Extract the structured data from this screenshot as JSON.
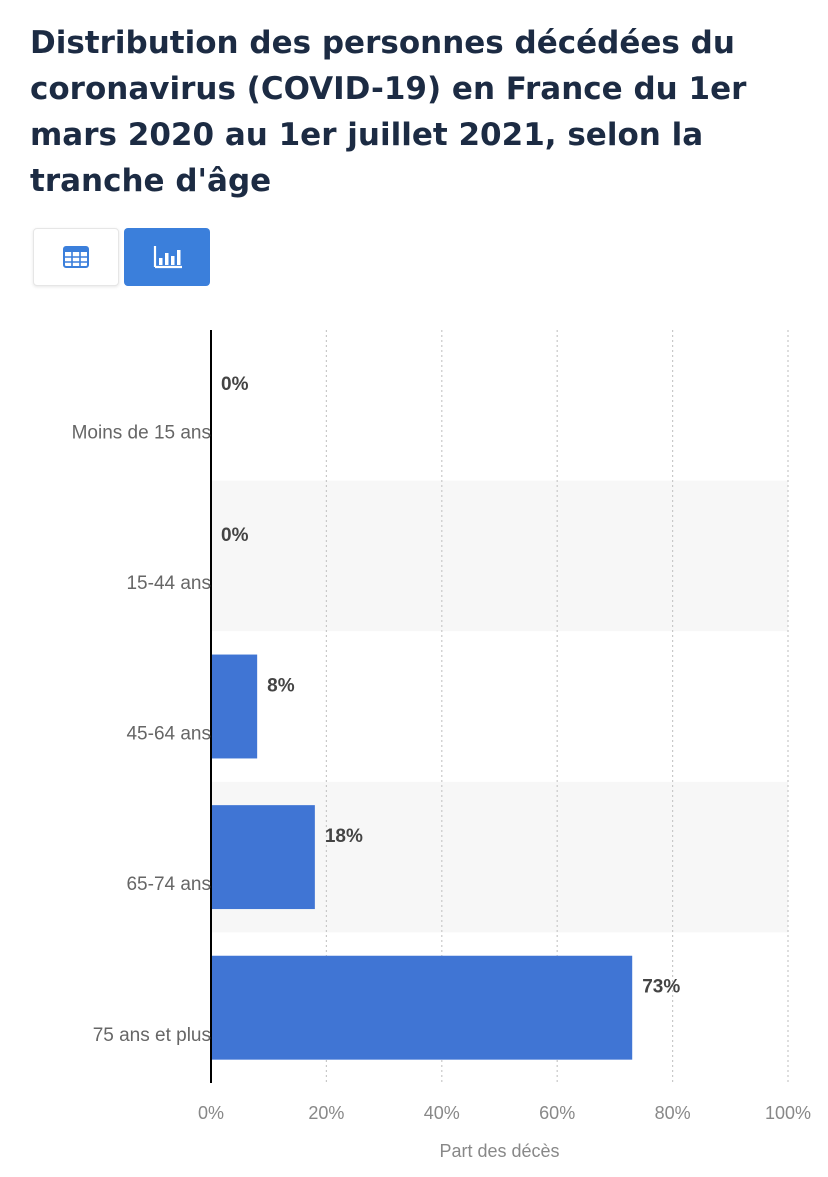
{
  "header": {
    "title": "Distribution des personnes décédées du coronavirus (COVID-19) en France du 1er mars 2020 au 1er juillet 2021, selon la tranche d'âge"
  },
  "view_toggle": {
    "table_icon": "table-icon",
    "chart_icon": "bar-chart-icon",
    "active": "chart"
  },
  "colors": {
    "bar": "#4075d4",
    "active_button": "#3b7fdb",
    "title": "#1c2b43",
    "alt_row": "#f7f7f7"
  },
  "chart_data": {
    "type": "bar",
    "orientation": "horizontal",
    "categories": [
      "Moins de 15 ans",
      "15-44 ans",
      "45-64 ans",
      "65-74 ans",
      "75 ans et plus"
    ],
    "values": [
      0,
      0,
      8,
      18,
      73
    ],
    "data_labels": [
      "0%",
      "0%",
      "8%",
      "18%",
      "73%"
    ],
    "xlabel": "Part des décès",
    "ylabel": "",
    "xlim": [
      0,
      100
    ],
    "xticks": [
      "0%",
      "20%",
      "40%",
      "60%",
      "80%",
      "100%"
    ],
    "grid": true
  }
}
